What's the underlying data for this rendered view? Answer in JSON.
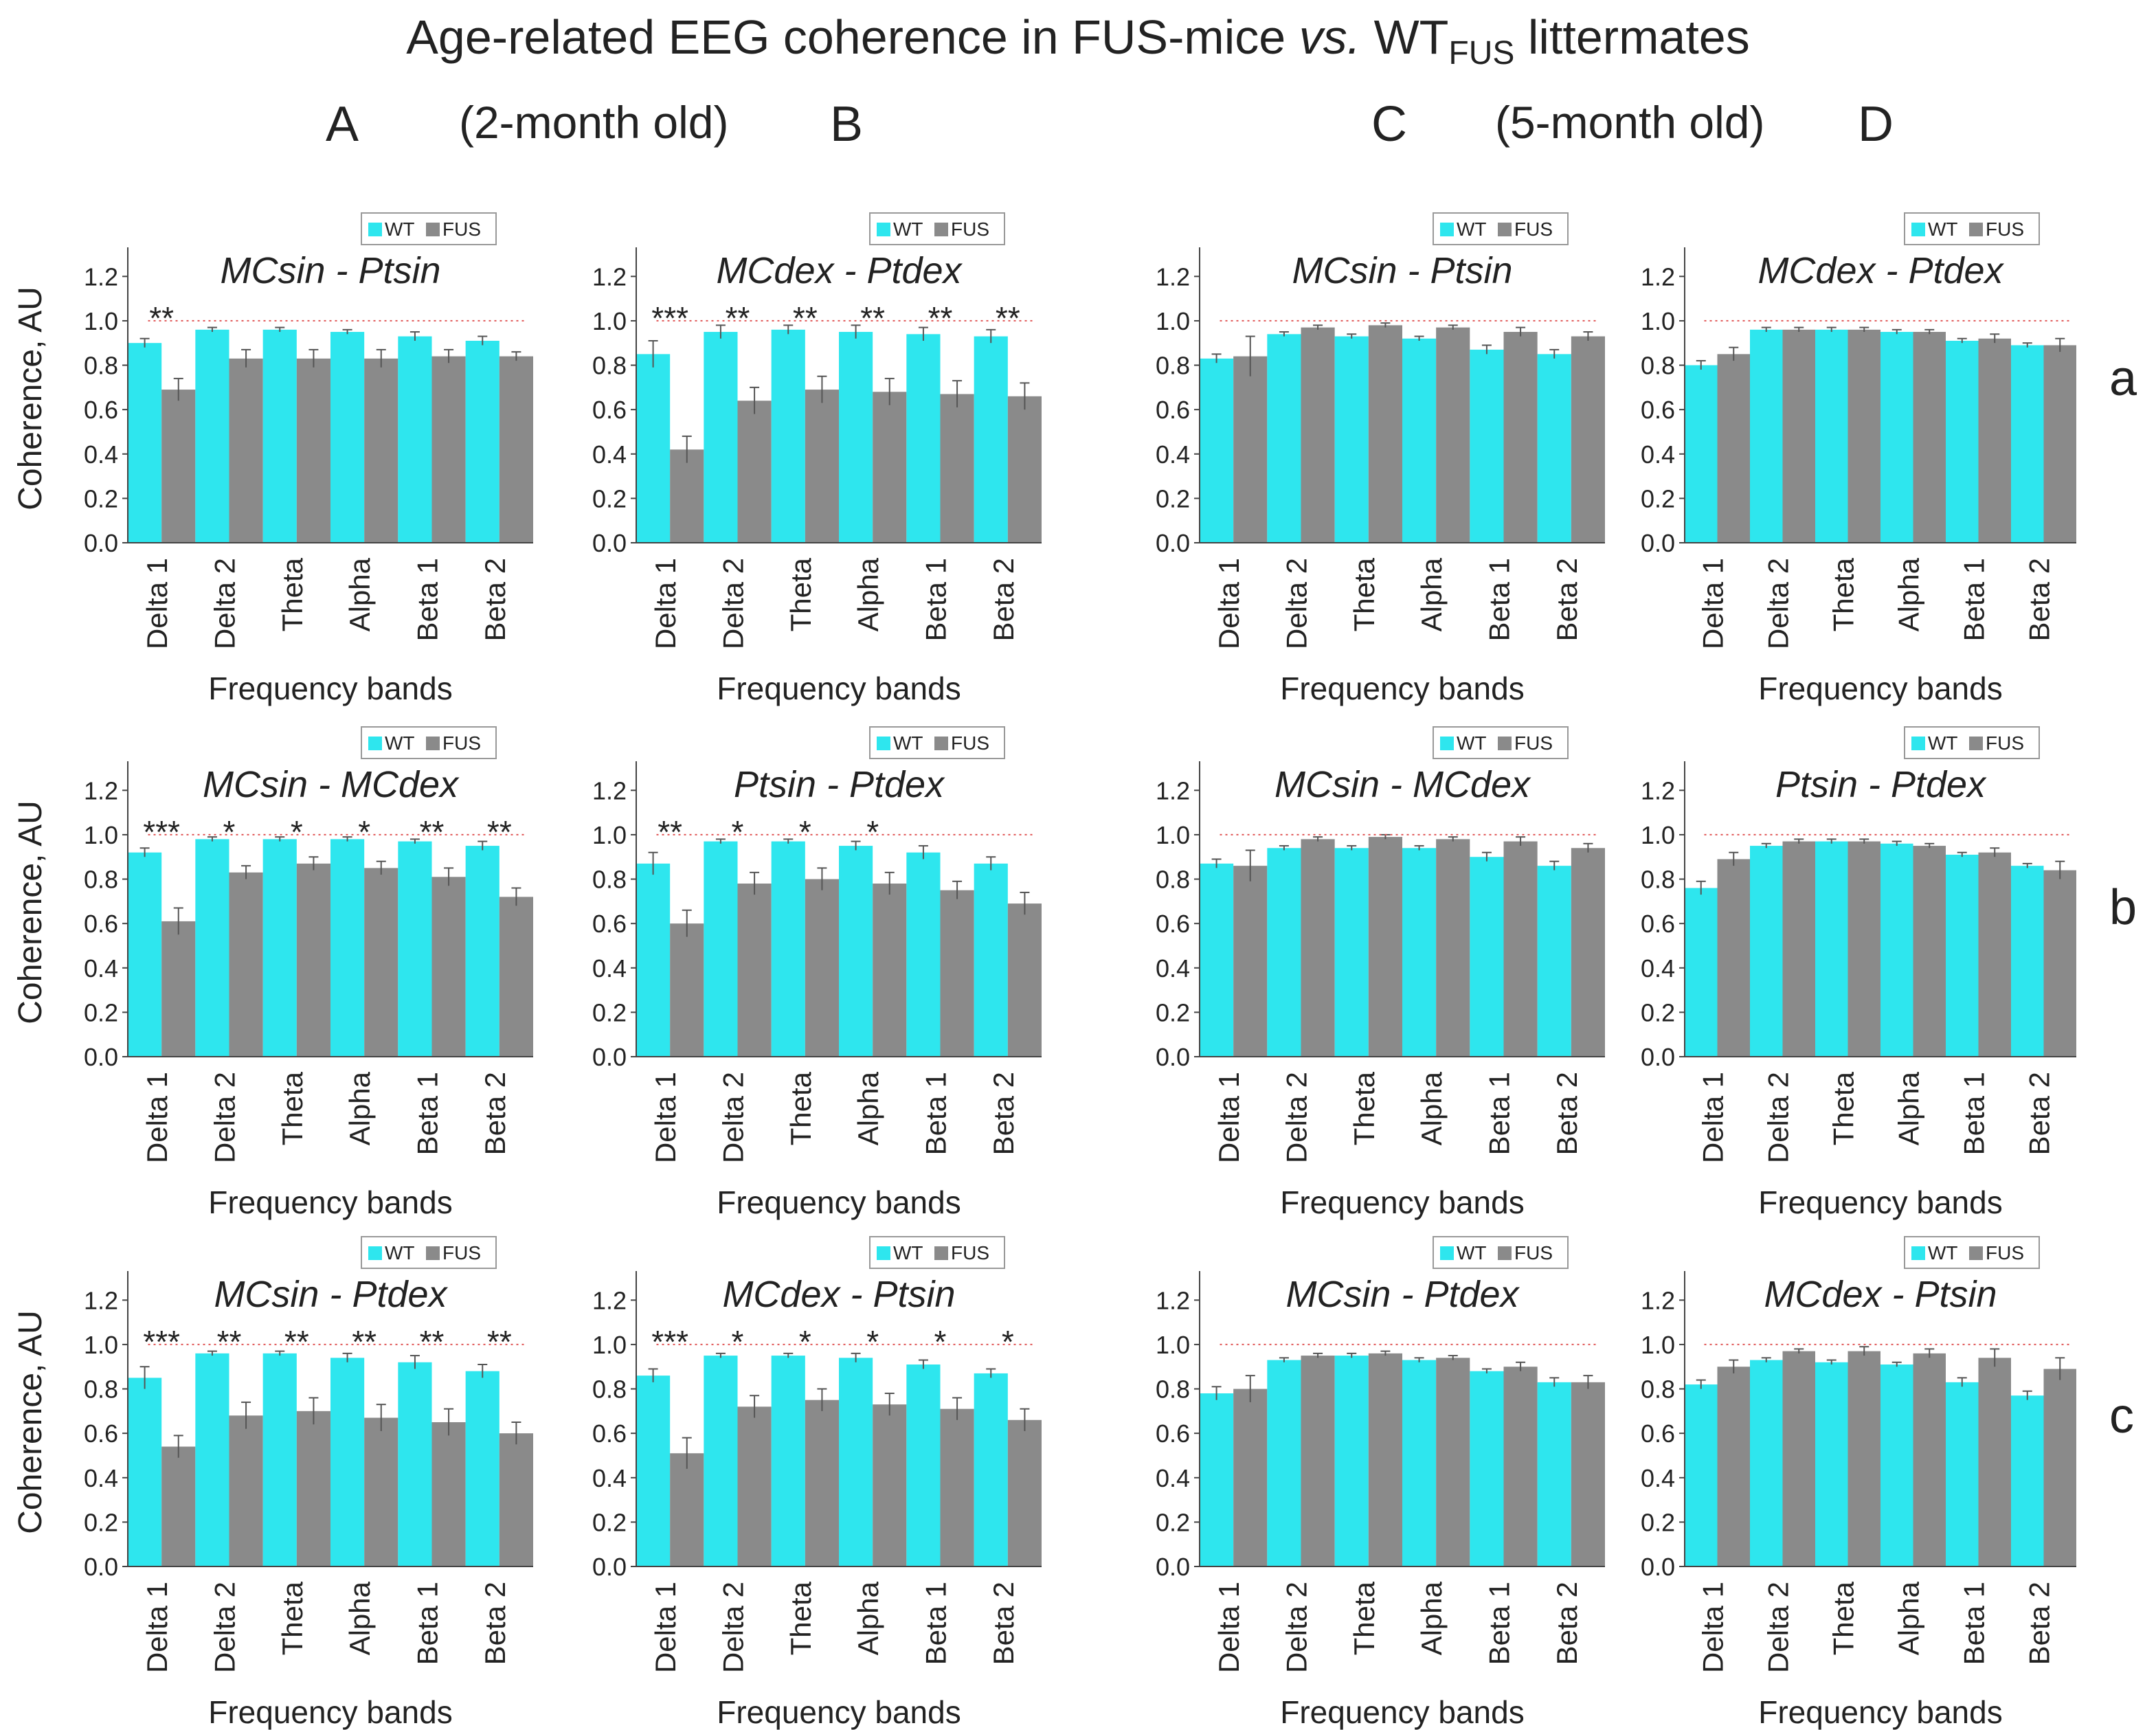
{
  "title": {
    "main": "Age-related EEG coherence in FUS-mice",
    "vs": "vs.",
    "wt": "WT",
    "wt_sub": "FUS",
    "tail": "littermates"
  },
  "columns": {
    "A": "A",
    "B": "B",
    "C": "C",
    "D": "D",
    "age_young": "(2-month old)",
    "age_old": "(5-month old)"
  },
  "rows": {
    "a": "a",
    "b": "b",
    "c": "c"
  },
  "colors": {
    "wt": "#2ee6ee",
    "fus": "#8a8a8a",
    "reference_line": "#e05555",
    "axis": "#444444"
  },
  "chart_data": [
    {
      "type": "bar",
      "panel": "Aa",
      "title": "MCsin - Ptsin",
      "xlabel": "Frequency bands",
      "ylabel": "Coherence, AU",
      "ylim": [
        0,
        1.3
      ],
      "yticks": [
        "0.0",
        "0.2",
        "0.4",
        "0.6",
        "0.8",
        "1.0",
        "1.2"
      ],
      "reference": 1.0,
      "legend": [
        "WT",
        "FUS"
      ],
      "categories": [
        "Delta 1",
        "Delta 2",
        "Theta",
        "Alpha",
        "Beta 1",
        "Beta 2"
      ],
      "series": [
        {
          "name": "WT",
          "values": [
            0.9,
            0.96,
            0.96,
            0.95,
            0.93,
            0.91
          ],
          "errors": [
            0.02,
            0.01,
            0.01,
            0.01,
            0.02,
            0.02
          ]
        },
        {
          "name": "FUS",
          "values": [
            0.69,
            0.83,
            0.83,
            0.83,
            0.84,
            0.84
          ],
          "errors": [
            0.05,
            0.04,
            0.04,
            0.04,
            0.03,
            0.02
          ]
        }
      ],
      "annotations": [
        "**",
        "",
        "",
        "",
        "",
        ""
      ]
    },
    {
      "type": "bar",
      "panel": "Ba",
      "title": "MCdex - Ptdex",
      "xlabel": "Frequency bands",
      "ylabel": "",
      "ylim": [
        0,
        1.3
      ],
      "yticks": [
        "0.0",
        "0.2",
        "0.4",
        "0.6",
        "0.8",
        "1.0",
        "1.2"
      ],
      "reference": 1.0,
      "legend": [
        "WT",
        "FUS"
      ],
      "categories": [
        "Delta 1",
        "Delta 2",
        "Theta",
        "Alpha",
        "Beta 1",
        "Beta 2"
      ],
      "series": [
        {
          "name": "WT",
          "values": [
            0.85,
            0.95,
            0.96,
            0.95,
            0.94,
            0.93
          ],
          "errors": [
            0.06,
            0.03,
            0.02,
            0.03,
            0.03,
            0.03
          ]
        },
        {
          "name": "FUS",
          "values": [
            0.42,
            0.64,
            0.69,
            0.68,
            0.67,
            0.66
          ],
          "errors": [
            0.06,
            0.06,
            0.06,
            0.06,
            0.06,
            0.06
          ]
        }
      ],
      "annotations": [
        "***",
        "**",
        "**",
        "**",
        "**",
        "**"
      ]
    },
    {
      "type": "bar",
      "panel": "Ca",
      "title": "MCsin - Ptsin",
      "xlabel": "Frequency bands",
      "ylabel": "",
      "ylim": [
        0,
        1.3
      ],
      "yticks": [
        "0.0",
        "0.2",
        "0.4",
        "0.6",
        "0.8",
        "1.0",
        "1.2"
      ],
      "reference": 1.0,
      "legend": [
        "WT",
        "FUS"
      ],
      "categories": [
        "Delta 1",
        "Delta 2",
        "Theta",
        "Alpha",
        "Beta 1",
        "Beta 2"
      ],
      "series": [
        {
          "name": "WT",
          "values": [
            0.83,
            0.94,
            0.93,
            0.92,
            0.87,
            0.85
          ],
          "errors": [
            0.02,
            0.01,
            0.01,
            0.01,
            0.02,
            0.02
          ]
        },
        {
          "name": "FUS",
          "values": [
            0.84,
            0.97,
            0.98,
            0.97,
            0.95,
            0.93
          ],
          "errors": [
            0.09,
            0.01,
            0.01,
            0.01,
            0.02,
            0.02
          ]
        }
      ],
      "annotations": [
        "",
        "",
        "",
        "",
        "",
        ""
      ]
    },
    {
      "type": "bar",
      "panel": "Da",
      "title": "MCdex - Ptdex",
      "xlabel": "Frequency bands",
      "ylabel": "",
      "ylim": [
        0,
        1.3
      ],
      "yticks": [
        "0.0",
        "0.2",
        "0.4",
        "0.6",
        "0.8",
        "1.0",
        "1.2"
      ],
      "reference": 1.0,
      "legend": [
        "WT",
        "FUS"
      ],
      "categories": [
        "Delta 1",
        "Delta 2",
        "Theta",
        "Alpha",
        "Beta 1",
        "Beta 2"
      ],
      "series": [
        {
          "name": "WT",
          "values": [
            0.8,
            0.96,
            0.96,
            0.95,
            0.91,
            0.89
          ],
          "errors": [
            0.02,
            0.01,
            0.01,
            0.01,
            0.01,
            0.01
          ]
        },
        {
          "name": "FUS",
          "values": [
            0.85,
            0.96,
            0.96,
            0.95,
            0.92,
            0.89
          ],
          "errors": [
            0.03,
            0.01,
            0.01,
            0.01,
            0.02,
            0.03
          ]
        }
      ],
      "annotations": [
        "",
        "",
        "",
        "",
        "",
        ""
      ]
    },
    {
      "type": "bar",
      "panel": "Ab",
      "title": "MCsin - MCdex",
      "xlabel": "Frequency bands",
      "ylabel": "Coherence, AU",
      "ylim": [
        0,
        1.3
      ],
      "yticks": [
        "0.0",
        "0.2",
        "0.4",
        "0.6",
        "0.8",
        "1.0",
        "1.2"
      ],
      "reference": 1.0,
      "legend": [
        "WT",
        "FUS"
      ],
      "categories": [
        "Delta 1",
        "Delta 2",
        "Theta",
        "Alpha",
        "Beta 1",
        "Beta 2"
      ],
      "series": [
        {
          "name": "WT",
          "values": [
            0.92,
            0.98,
            0.98,
            0.98,
            0.97,
            0.95
          ],
          "errors": [
            0.02,
            0.01,
            0.01,
            0.01,
            0.01,
            0.02
          ]
        },
        {
          "name": "FUS",
          "values": [
            0.61,
            0.83,
            0.87,
            0.85,
            0.81,
            0.72
          ],
          "errors": [
            0.06,
            0.03,
            0.03,
            0.03,
            0.04,
            0.04
          ]
        }
      ],
      "annotations": [
        "***",
        "*",
        "*",
        "*",
        "**",
        "**"
      ]
    },
    {
      "type": "bar",
      "panel": "Bb",
      "title": "Ptsin - Ptdex",
      "xlabel": "Frequency bands",
      "ylabel": "",
      "ylim": [
        0,
        1.3
      ],
      "yticks": [
        "0.0",
        "0.2",
        "0.4",
        "0.6",
        "0.8",
        "1.0",
        "1.2"
      ],
      "reference": 1.0,
      "legend": [
        "WT",
        "FUS"
      ],
      "categories": [
        "Delta 1",
        "Delta 2",
        "Theta",
        "Alpha",
        "Beta 1",
        "Beta 2"
      ],
      "series": [
        {
          "name": "WT",
          "values": [
            0.87,
            0.97,
            0.97,
            0.95,
            0.92,
            0.87
          ],
          "errors": [
            0.05,
            0.01,
            0.01,
            0.02,
            0.03,
            0.03
          ]
        },
        {
          "name": "FUS",
          "values": [
            0.6,
            0.78,
            0.8,
            0.78,
            0.75,
            0.69
          ],
          "errors": [
            0.06,
            0.05,
            0.05,
            0.05,
            0.04,
            0.05
          ]
        }
      ],
      "annotations": [
        "**",
        "*",
        "*",
        "*",
        "",
        ""
      ]
    },
    {
      "type": "bar",
      "panel": "Cb",
      "title": "MCsin - MCdex",
      "xlabel": "Frequency bands",
      "ylabel": "",
      "ylim": [
        0,
        1.3
      ],
      "yticks": [
        "0.0",
        "0.2",
        "0.4",
        "0.6",
        "0.8",
        "1.0",
        "1.2"
      ],
      "reference": 1.0,
      "legend": [
        "WT",
        "FUS"
      ],
      "categories": [
        "Delta 1",
        "Delta 2",
        "Theta",
        "Alpha",
        "Beta 1",
        "Beta 2"
      ],
      "series": [
        {
          "name": "WT",
          "values": [
            0.87,
            0.94,
            0.94,
            0.94,
            0.9,
            0.86
          ],
          "errors": [
            0.02,
            0.01,
            0.01,
            0.01,
            0.02,
            0.02
          ]
        },
        {
          "name": "FUS",
          "values": [
            0.86,
            0.98,
            0.99,
            0.98,
            0.97,
            0.94
          ],
          "errors": [
            0.07,
            0.01,
            0.01,
            0.01,
            0.02,
            0.02
          ]
        }
      ],
      "annotations": [
        "",
        "",
        "",
        "",
        "",
        ""
      ]
    },
    {
      "type": "bar",
      "panel": "Db",
      "title": "Ptsin - Ptdex",
      "xlabel": "Frequency bands",
      "ylabel": "",
      "ylim": [
        0,
        1.3
      ],
      "yticks": [
        "0.0",
        "0.2",
        "0.4",
        "0.6",
        "0.8",
        "1.0",
        "1.2"
      ],
      "reference": 1.0,
      "legend": [
        "WT",
        "FUS"
      ],
      "categories": [
        "Delta 1",
        "Delta 2",
        "Theta",
        "Alpha",
        "Beta 1",
        "Beta 2"
      ],
      "series": [
        {
          "name": "WT",
          "values": [
            0.76,
            0.95,
            0.97,
            0.96,
            0.91,
            0.86
          ],
          "errors": [
            0.03,
            0.01,
            0.01,
            0.01,
            0.01,
            0.01
          ]
        },
        {
          "name": "FUS",
          "values": [
            0.89,
            0.97,
            0.97,
            0.95,
            0.92,
            0.84
          ],
          "errors": [
            0.03,
            0.01,
            0.01,
            0.01,
            0.02,
            0.04
          ]
        }
      ],
      "annotations": [
        "",
        "",
        "",
        "",
        "",
        ""
      ]
    },
    {
      "type": "bar",
      "panel": "Ac",
      "title": "MCsin - Ptdex",
      "xlabel": "Frequency bands",
      "ylabel": "Coherence, AU",
      "ylim": [
        0,
        1.3
      ],
      "yticks": [
        "0.0",
        "0.2",
        "0.4",
        "0.6",
        "0.8",
        "1.0",
        "1.2"
      ],
      "reference": 1.0,
      "legend": [
        "WT",
        "FUS"
      ],
      "categories": [
        "Delta 1",
        "Delta 2",
        "Theta",
        "Alpha",
        "Beta 1",
        "Beta 2"
      ],
      "series": [
        {
          "name": "WT",
          "values": [
            0.85,
            0.96,
            0.96,
            0.94,
            0.92,
            0.88
          ],
          "errors": [
            0.05,
            0.01,
            0.01,
            0.02,
            0.03,
            0.03
          ]
        },
        {
          "name": "FUS",
          "values": [
            0.54,
            0.68,
            0.7,
            0.67,
            0.65,
            0.6
          ],
          "errors": [
            0.05,
            0.06,
            0.06,
            0.06,
            0.06,
            0.05
          ]
        }
      ],
      "annotations": [
        "***",
        "**",
        "**",
        "**",
        "**",
        "**"
      ]
    },
    {
      "type": "bar",
      "panel": "Bc",
      "title": "MCdex - Ptsin",
      "xlabel": "Frequency bands",
      "ylabel": "",
      "ylim": [
        0,
        1.3
      ],
      "yticks": [
        "0.0",
        "0.2",
        "0.4",
        "0.6",
        "0.8",
        "1.0",
        "1.2"
      ],
      "reference": 1.0,
      "legend": [
        "WT",
        "FUS"
      ],
      "categories": [
        "Delta 1",
        "Delta 2",
        "Theta",
        "Alpha",
        "Beta 1",
        "Beta 2"
      ],
      "series": [
        {
          "name": "WT",
          "values": [
            0.86,
            0.95,
            0.95,
            0.94,
            0.91,
            0.87
          ],
          "errors": [
            0.03,
            0.01,
            0.01,
            0.02,
            0.02,
            0.02
          ]
        },
        {
          "name": "FUS",
          "values": [
            0.51,
            0.72,
            0.75,
            0.73,
            0.71,
            0.66
          ],
          "errors": [
            0.07,
            0.05,
            0.05,
            0.05,
            0.05,
            0.05
          ]
        }
      ],
      "annotations": [
        "***",
        "*",
        "*",
        "*",
        "*",
        "*"
      ]
    },
    {
      "type": "bar",
      "panel": "Cc",
      "title": "MCsin - Ptdex",
      "xlabel": "Frequency bands",
      "ylabel": "",
      "ylim": [
        0,
        1.3
      ],
      "yticks": [
        "0.0",
        "0.2",
        "0.4",
        "0.6",
        "0.8",
        "1.0",
        "1.2"
      ],
      "reference": 1.0,
      "legend": [
        "WT",
        "FUS"
      ],
      "categories": [
        "Delta 1",
        "Delta 2",
        "Theta",
        "Alpha",
        "Beta 1",
        "Beta 2"
      ],
      "series": [
        {
          "name": "WT",
          "values": [
            0.78,
            0.93,
            0.95,
            0.93,
            0.88,
            0.83
          ],
          "errors": [
            0.03,
            0.01,
            0.01,
            0.01,
            0.01,
            0.02
          ]
        },
        {
          "name": "FUS",
          "values": [
            0.8,
            0.95,
            0.96,
            0.94,
            0.9,
            0.83
          ],
          "errors": [
            0.06,
            0.01,
            0.01,
            0.01,
            0.02,
            0.03
          ]
        }
      ],
      "annotations": [
        "",
        "",
        "",
        "",
        "",
        ""
      ]
    },
    {
      "type": "bar",
      "panel": "Dc",
      "title": "MCdex - Ptsin",
      "xlabel": "Frequency bands",
      "ylabel": "",
      "ylim": [
        0,
        1.3
      ],
      "yticks": [
        "0.0",
        "0.2",
        "0.4",
        "0.6",
        "0.8",
        "1.0",
        "1.2"
      ],
      "reference": 1.0,
      "legend": [
        "WT",
        "FUS"
      ],
      "categories": [
        "Delta 1",
        "Delta 2",
        "Theta",
        "Alpha",
        "Beta 1",
        "Beta 2"
      ],
      "series": [
        {
          "name": "WT",
          "values": [
            0.82,
            0.93,
            0.92,
            0.91,
            0.83,
            0.77
          ],
          "errors": [
            0.02,
            0.01,
            0.01,
            0.01,
            0.02,
            0.02
          ]
        },
        {
          "name": "FUS",
          "values": [
            0.9,
            0.97,
            0.97,
            0.96,
            0.94,
            0.89
          ],
          "errors": [
            0.03,
            0.01,
            0.02,
            0.02,
            0.04,
            0.05
          ]
        }
      ],
      "annotations": [
        "",
        "",
        "",
        "",
        "",
        ""
      ]
    }
  ]
}
